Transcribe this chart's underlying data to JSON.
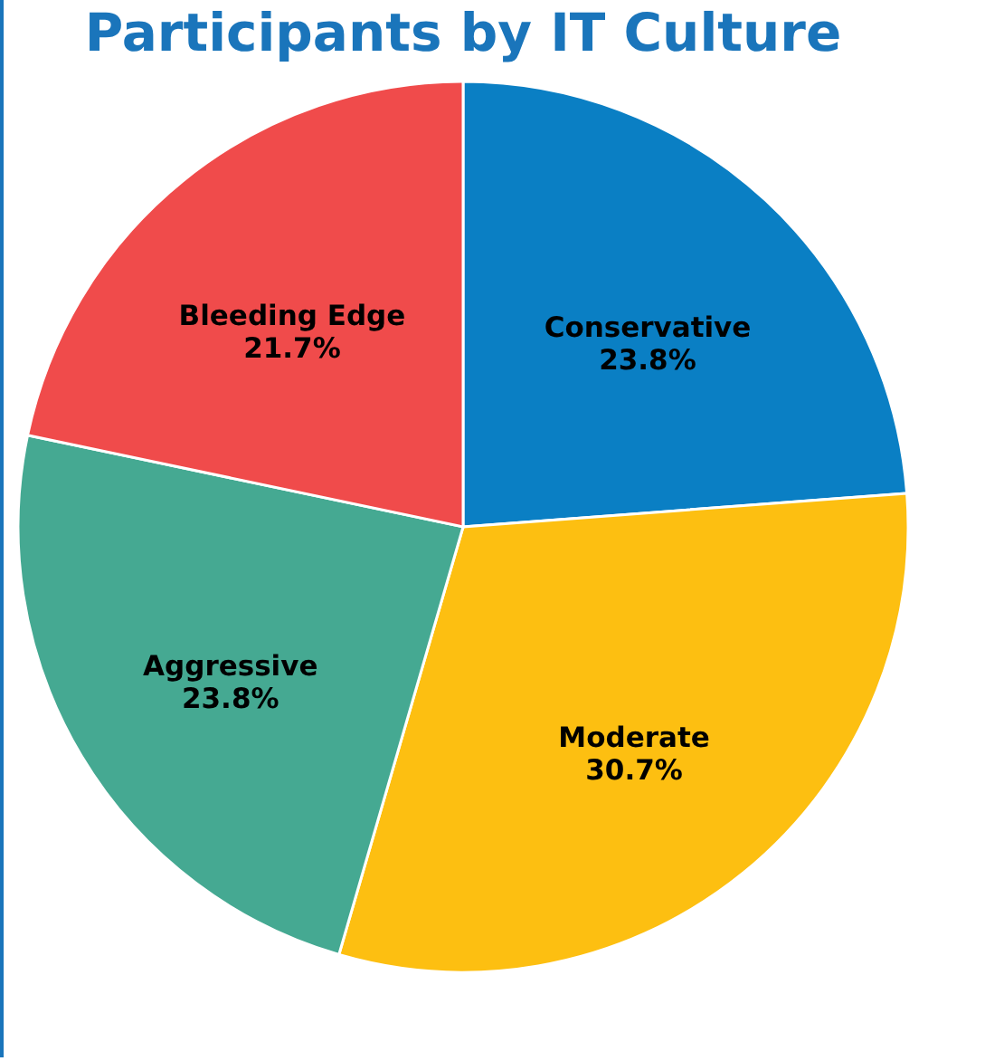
{
  "chart_data": {
    "type": "pie",
    "title": "Participants by IT Culture",
    "categories": [
      "Conservative",
      "Moderate",
      "Aggressive",
      "Bleeding Edge"
    ],
    "values": [
      23.8,
      30.7,
      23.8,
      21.7
    ],
    "value_labels": [
      "23.8%",
      "30.7%",
      "23.8%",
      "21.7%"
    ],
    "colors": [
      "#0a7fc4",
      "#fdbf11",
      "#45a992",
      "#f04b4b"
    ],
    "legend": false
  }
}
